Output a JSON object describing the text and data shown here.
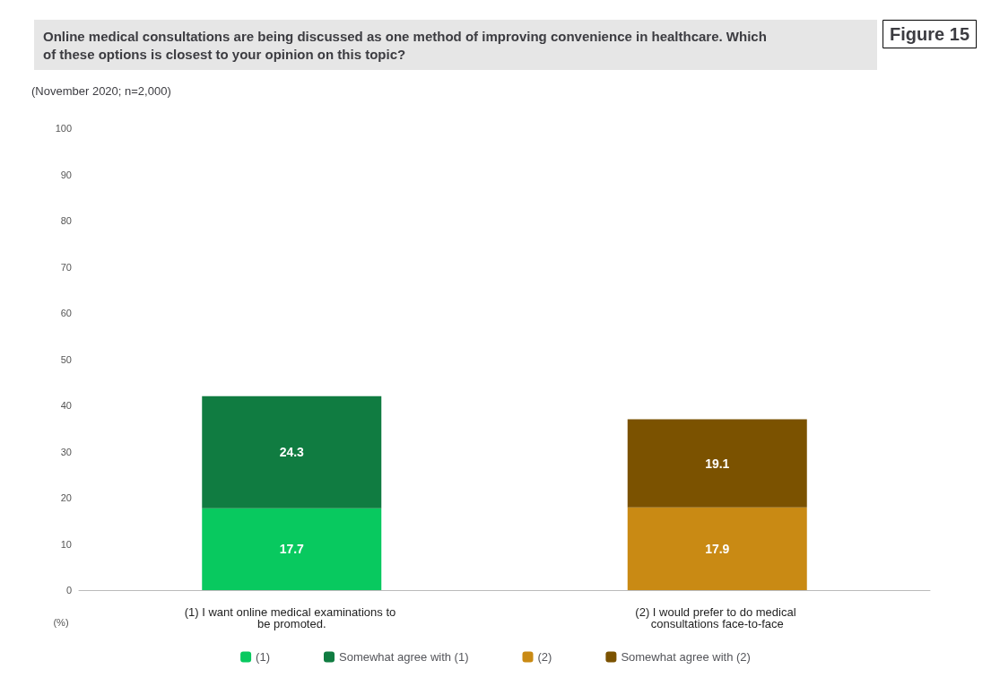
{
  "chart_data": {
    "type": "bar",
    "title": "Online medical consultations are being discussed as one method of improving convenience in healthcare. Which of these options is closest to your opinion on this topic?",
    "subtitle": "(November 2020; n=2,000)",
    "annotations": [
      "Figure 15"
    ],
    "ylabel": "(%)",
    "categories": [
      "(1) I want online medical examinations to be promoted.",
      "(2) I would prefer to do medical consultations face-to-face"
    ],
    "series": [
      {
        "name": "(1)",
        "color": "#08c95f",
        "values": [
          17.7,
          null
        ]
      },
      {
        "name": "Somewhat agree with (1)",
        "color": "#107c41",
        "values": [
          24.3,
          null
        ]
      },
      {
        "name": "(2)",
        "color": "#c98a14",
        "values": [
          null,
          17.9
        ]
      },
      {
        "name": "Somewhat agree with (2)",
        "color": "#7b5200",
        "values": [
          null,
          19.1
        ]
      }
    ],
    "stacked": true,
    "data_labels": true,
    "ylim": [
      0,
      100
    ],
    "yticks": [
      0,
      10,
      20,
      30,
      40,
      50,
      60,
      70,
      80,
      90,
      100
    ],
    "grid": false,
    "legend": "bottom"
  }
}
